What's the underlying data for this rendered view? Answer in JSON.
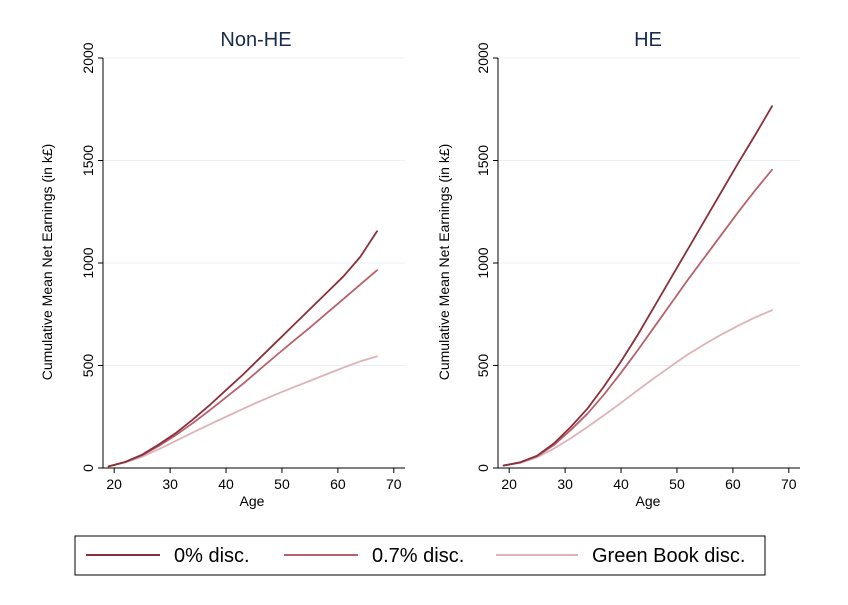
{
  "chart_data": [
    {
      "type": "line",
      "title": "Non-HE",
      "xlabel": "Age",
      "ylabel": "Cumulative Mean Net Earnings (in k£)",
      "xlim": [
        18,
        72
      ],
      "ylim": [
        0,
        2000
      ],
      "xticks": [
        20,
        30,
        40,
        50,
        60,
        70
      ],
      "yticks": [
        0,
        500,
        1000,
        1500,
        2000
      ],
      "grid": "horizontal",
      "x": [
        19,
        22,
        25,
        28,
        31,
        34,
        37,
        40,
        43,
        46,
        49,
        52,
        55,
        58,
        61,
        64,
        67
      ],
      "series": [
        {
          "name": "0% disc.",
          "color": "#8b2f3a",
          "values": [
            8,
            30,
            65,
            115,
            170,
            235,
            305,
            380,
            455,
            535,
            615,
            695,
            775,
            855,
            935,
            1030,
            1155
          ]
        },
        {
          "name": "0.7% disc.",
          "color": "#b8606c",
          "values": [
            8,
            29,
            62,
            108,
            160,
            218,
            280,
            345,
            410,
            480,
            550,
            618,
            685,
            755,
            825,
            895,
            965
          ]
        },
        {
          "name": "Green Book disc.",
          "color": "#ddb3b9",
          "values": [
            8,
            27,
            55,
            92,
            132,
            172,
            212,
            250,
            288,
            325,
            360,
            393,
            425,
            458,
            490,
            520,
            545
          ]
        }
      ]
    },
    {
      "type": "line",
      "title": "HE",
      "xlabel": "Age",
      "ylabel": "Cumulative Mean Net Earnings (in k£)",
      "xlim": [
        18,
        72
      ],
      "ylim": [
        0,
        2000
      ],
      "xticks": [
        20,
        30,
        40,
        50,
        60,
        70
      ],
      "yticks": [
        0,
        500,
        1000,
        1500,
        2000
      ],
      "grid": "horizontal",
      "x": [
        19,
        22,
        25,
        28,
        31,
        34,
        37,
        40,
        43,
        46,
        49,
        52,
        55,
        58,
        61,
        64,
        67
      ],
      "series": [
        {
          "name": "0% disc.",
          "color": "#8b2f3a",
          "values": [
            12,
            28,
            60,
            120,
            200,
            290,
            400,
            520,
            650,
            790,
            930,
            1070,
            1210,
            1350,
            1490,
            1625,
            1765
          ]
        },
        {
          "name": "0.7% disc.",
          "color": "#b8606c",
          "values": [
            12,
            27,
            58,
            112,
            185,
            265,
            360,
            465,
            575,
            690,
            805,
            920,
            1030,
            1140,
            1250,
            1355,
            1455
          ]
        },
        {
          "name": "Green Book disc.",
          "color": "#ddb3b9",
          "values": [
            12,
            25,
            52,
            95,
            145,
            200,
            258,
            318,
            380,
            440,
            498,
            555,
            605,
            652,
            695,
            735,
            770
          ]
        }
      ]
    }
  ],
  "legend": {
    "placement": "bottom",
    "items": [
      {
        "label": "0% disc.",
        "color": "#8b2f3a"
      },
      {
        "label": "0.7% disc.",
        "color": "#b8606c"
      },
      {
        "label": "Green Book disc.",
        "color": "#ddb3b9"
      }
    ]
  }
}
